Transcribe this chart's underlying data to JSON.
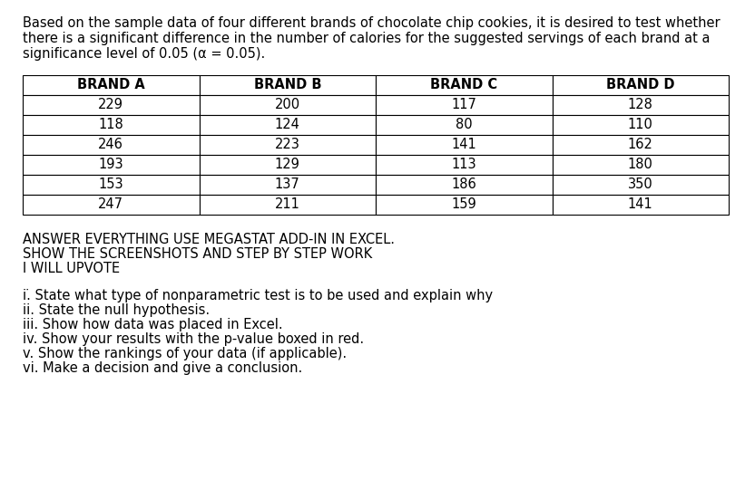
{
  "title_text_line1": "Based on the sample data of four different brands of chocolate chip cookies, it is desired to test whether",
  "title_text_line2": "there is a significant difference in the number of calories for the suggested servings of each brand at a",
  "title_text_line3": "significance level of 0.05 (α = 0.05).",
  "headers": [
    "BRAND A",
    "BRAND B",
    "BRAND C",
    "BRAND D"
  ],
  "data": [
    [
      229,
      200,
      117,
      128
    ],
    [
      118,
      124,
      80,
      110
    ],
    [
      246,
      223,
      141,
      162
    ],
    [
      193,
      129,
      113,
      180
    ],
    [
      153,
      137,
      186,
      350
    ],
    [
      247,
      211,
      159,
      141
    ]
  ],
  "instructions": [
    "ANSWER EVERYTHING USE MEGASTAT ADD-IN IN EXCEL.",
    "SHOW THE SCREENSHOTS AND STEP BY STEP WORK",
    "I WILL UPVOTE"
  ],
  "questions": [
    "i.̇ State what type of nonparametric test is to be used and explain why",
    "ii. State the null hypothesis.",
    "iii. Show how data was placed in Excel.",
    "iv. Show your results with the p-value boxed in red.",
    "v. Show the rankings of your data (if applicable).",
    "vi. Make a decision and give a conclusion."
  ],
  "bg_color": "#ffffff",
  "text_color": "#000000",
  "font_size_body": 10.5,
  "font_size_table": 10.5,
  "font_size_header": 10.5,
  "fig_width": 8.21,
  "fig_height": 5.3,
  "dpi": 100
}
